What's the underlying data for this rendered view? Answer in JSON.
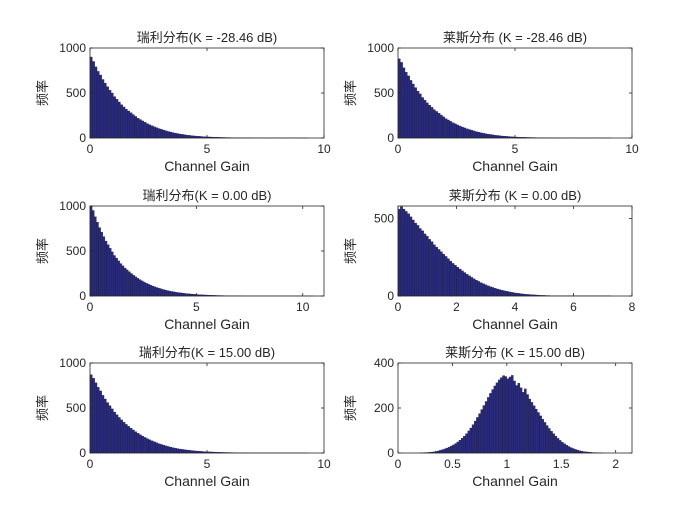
{
  "chart_data": [
    {
      "type": "bar",
      "title": "瑞利分布(K = -28.46 dB)",
      "xlabel": "Channel Gain",
      "ylabel": "频率",
      "xlim": [
        0,
        10
      ],
      "ylim": [
        0,
        1000
      ],
      "xticks": [
        0,
        5,
        10
      ],
      "yticks": [
        0,
        500,
        1000
      ],
      "bins": {
        "start": 0,
        "width": 0.1
      },
      "values": [
        900,
        850,
        790,
        740,
        700,
        650,
        610,
        570,
        530,
        500,
        460,
        430,
        400,
        370,
        345,
        320,
        300,
        280,
        260,
        240,
        220,
        205,
        190,
        175,
        160,
        148,
        136,
        125,
        115,
        105,
        96,
        88,
        80,
        72,
        66,
        60,
        54,
        49,
        44,
        40,
        36,
        32,
        29,
        26,
        23,
        21,
        19,
        17,
        15,
        13,
        12,
        11,
        10,
        9,
        8,
        7,
        6,
        6,
        5,
        5,
        4,
        4,
        3,
        3,
        3,
        2,
        2,
        2,
        2,
        1,
        1,
        1,
        1,
        1,
        1,
        1,
        1,
        1,
        1,
        1,
        1,
        1,
        1,
        1,
        1,
        1,
        1,
        1,
        1,
        1,
        1,
        1,
        1
      ]
    },
    {
      "type": "bar",
      "title": "莱斯分布 (K = -28.46 dB)",
      "xlabel": "Channel Gain",
      "ylabel": "频率",
      "xlim": [
        0,
        10
      ],
      "ylim": [
        0,
        1000
      ],
      "xticks": [
        0,
        5,
        10
      ],
      "yticks": [
        0,
        500,
        1000
      ],
      "bins": {
        "start": 0,
        "width": 0.1
      },
      "values": [
        880,
        840,
        780,
        730,
        690,
        640,
        600,
        560,
        520,
        490,
        450,
        420,
        390,
        365,
        340,
        315,
        295,
        275,
        255,
        235,
        215,
        200,
        185,
        170,
        157,
        145,
        133,
        122,
        112,
        102,
        94,
        86,
        78,
        70,
        64,
        58,
        52,
        47,
        43,
        39,
        35,
        31,
        28,
        25,
        22,
        20,
        18,
        16,
        14,
        12,
        11,
        10,
        9,
        8,
        7,
        6,
        6,
        5,
        5,
        4,
        4,
        3,
        3,
        3,
        2,
        2,
        2,
        2,
        1,
        1,
        1,
        1,
        1,
        1,
        1,
        1,
        1,
        1,
        1,
        1,
        1,
        1,
        1,
        1,
        1,
        1,
        1,
        1,
        1,
        1,
        1
      ]
    },
    {
      "type": "bar",
      "title": "瑞利分布(K = 0.00 dB)",
      "xlabel": "Channel Gain",
      "ylabel": "频率",
      "xlim": [
        0,
        11
      ],
      "ylim": [
        0,
        1000
      ],
      "xticks": [
        0,
        5,
        10
      ],
      "yticks": [
        0,
        500,
        1000
      ],
      "bins": {
        "start": 0,
        "width": 0.1
      },
      "values": [
        1000,
        950,
        880,
        820,
        760,
        710,
        660,
        610,
        570,
        530,
        490,
        450,
        420,
        390,
        360,
        335,
        310,
        290,
        270,
        250,
        230,
        213,
        197,
        182,
        168,
        155,
        143,
        132,
        121,
        111,
        102,
        94,
        86,
        79,
        72,
        66,
        60,
        55,
        50,
        46,
        42,
        38,
        35,
        32,
        29,
        26,
        24,
        22,
        20,
        18,
        16,
        14,
        13,
        12,
        11,
        10,
        9,
        8,
        7,
        6,
        6,
        5,
        5,
        4,
        4,
        3,
        3,
        3,
        2,
        2,
        2,
        2,
        1,
        1,
        1,
        1,
        1,
        1,
        1,
        1,
        1,
        1,
        1,
        1,
        1,
        1,
        1,
        1,
        1,
        1,
        1,
        1,
        1,
        1,
        1,
        1,
        1,
        1,
        1,
        1,
        1,
        1,
        1,
        1,
        1
      ]
    },
    {
      "type": "bar",
      "title": "莱斯分布 (K = 0.00 dB)",
      "xlabel": "Channel Gain",
      "ylabel": "频率",
      "xlim": [
        0,
        8
      ],
      "ylim": [
        0,
        580
      ],
      "xticks": [
        0,
        2,
        4,
        6,
        8
      ],
      "yticks": [
        0,
        500
      ],
      "bins": {
        "start": 0,
        "width": 0.08
      },
      "values": [
        560,
        575,
        560,
        545,
        530,
        510,
        490,
        470,
        455,
        435,
        420,
        400,
        385,
        365,
        350,
        330,
        315,
        300,
        285,
        270,
        255,
        240,
        225,
        210,
        198,
        186,
        174,
        162,
        151,
        140,
        130,
        120,
        111,
        102,
        94,
        86,
        79,
        72,
        66,
        60,
        55,
        50,
        45,
        41,
        37,
        33,
        30,
        27,
        24,
        21,
        19,
        17,
        15,
        13,
        11,
        10,
        9,
        8,
        7,
        6,
        5,
        4,
        4,
        3,
        3,
        2,
        2,
        2,
        1,
        1,
        1,
        1,
        1,
        1,
        1,
        1,
        1,
        1,
        1,
        1,
        1,
        1,
        1,
        1,
        1,
        1,
        1,
        1,
        1,
        1,
        1
      ]
    },
    {
      "type": "bar",
      "title": "瑞利分布(K = 15.00 dB)",
      "xlabel": "Channel Gain",
      "ylabel": "频率",
      "xlim": [
        0,
        10
      ],
      "ylim": [
        0,
        1000
      ],
      "xticks": [
        0,
        5,
        10
      ],
      "yticks": [
        0,
        500,
        1000
      ],
      "bins": {
        "start": 0,
        "width": 0.1
      },
      "values": [
        870,
        830,
        780,
        730,
        690,
        640,
        600,
        560,
        525,
        490,
        455,
        425,
        395,
        368,
        342,
        318,
        296,
        276,
        256,
        237,
        219,
        203,
        188,
        173,
        160,
        147,
        135,
        124,
        114,
        104,
        95,
        87,
        79,
        72,
        65,
        59,
        53,
        48,
        44,
        40,
        36,
        33,
        30,
        27,
        24,
        22,
        20,
        18,
        16,
        14,
        13,
        12,
        11,
        10,
        9,
        8,
        7,
        6,
        6,
        5,
        5,
        4,
        4,
        3,
        3,
        3,
        2,
        2,
        2,
        2,
        1,
        1,
        1,
        1,
        1,
        1,
        1,
        1,
        1,
        1,
        1,
        1,
        1,
        1,
        1,
        1,
        1,
        1,
        1,
        1,
        1,
        1,
        1
      ]
    },
    {
      "type": "bar",
      "title": "莱斯分布 (K = 15.00 dB)",
      "xlabel": "Channel Gain",
      "ylabel": "频率",
      "xlim": [
        0,
        2.15
      ],
      "ylim": [
        0,
        400
      ],
      "xticks": [
        0,
        0.5,
        1,
        1.5,
        2
      ],
      "yticks": [
        0,
        200,
        400
      ],
      "bins": {
        "start": 0.2,
        "width": 0.02
      },
      "values": [
        1,
        1,
        2,
        2,
        3,
        4,
        5,
        7,
        9,
        12,
        15,
        18,
        22,
        26,
        31,
        36,
        42,
        49,
        57,
        66,
        75,
        86,
        98,
        111,
        126,
        142,
        158,
        175,
        193,
        211,
        229,
        247,
        265,
        282,
        298,
        312,
        325,
        335,
        344,
        340,
        330,
        338,
        345,
        320,
        300,
        310,
        290,
        270,
        285,
        260,
        240,
        225,
        210,
        195,
        180,
        165,
        150,
        136,
        122,
        109,
        97,
        86,
        75,
        65,
        56,
        48,
        41,
        35,
        29,
        24,
        20,
        16,
        13,
        10,
        8,
        6,
        5,
        4,
        3,
        2,
        2,
        1,
        1,
        1
      ]
    }
  ]
}
